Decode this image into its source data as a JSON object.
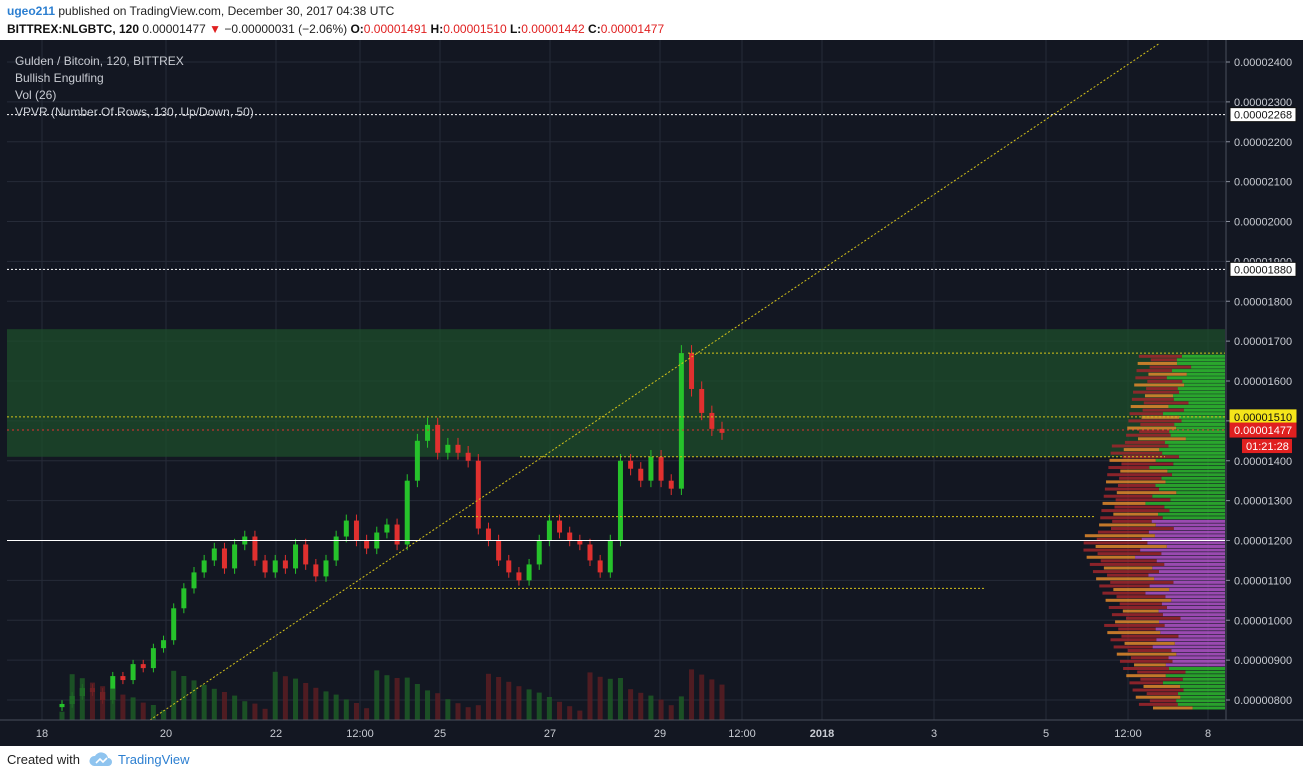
{
  "header": {
    "user": "ugeo211",
    "published_text": "published on TradingView.com, December 30, 2017 04:38 UTC",
    "symbol_line": "BITTREX:NLGBTC, 120",
    "last_price": "0.00001477",
    "change": "−0.00000031 (−2.06%)",
    "o_label": "O:",
    "o_value": "0.00001491",
    "h_label": "H:",
    "h_value": "0.00001510",
    "l_label": "L:",
    "l_value": "0.00001442",
    "c_label": "C:",
    "c_value": "0.00001477"
  },
  "legend": {
    "title": "Gulden / Bitcoin, 120, BITTREX",
    "study1": "Bullish Engulfing",
    "study2": "Vol (26)",
    "study3": "VPVR (Number Of Rows, 130, Up/Down, 50)"
  },
  "footer": {
    "created_with": "Created with",
    "brand": "TradingView"
  },
  "colors": {
    "background": "#131722",
    "up": "#26c22b",
    "down": "#e0302f",
    "zone": "#1e4d2b",
    "trendline": "#d4c21a",
    "price_badge": "#e02020",
    "level_badge": "#f5e61a"
  },
  "chart_data": {
    "type": "candlestick",
    "title": "Gulden / Bitcoin, 120, BITTREX",
    "x_ticks": [
      "18",
      "20",
      "22",
      "12:00",
      "25",
      "27",
      "29",
      "12:00",
      "2018",
      "3",
      "5",
      "12:00",
      "8"
    ],
    "y_ticks": [
      "0.00002400",
      "0.00002300",
      "0.00002200",
      "0.00002100",
      "0.00002000",
      "0.00001900",
      "0.00001800",
      "0.00001700",
      "0.00001600",
      "0.00001500",
      "0.00001400",
      "0.00001300",
      "0.00001200",
      "0.00001100",
      "0.00001000",
      "0.00000900",
      "0.00000800"
    ],
    "ylim": [
      7.6e-06,
      2.46e-05
    ],
    "horizontal_levels": [
      {
        "label": "0.00002268",
        "value": 2.268e-05,
        "style": "dotted-white"
      },
      {
        "label": "0.00001880",
        "value": 1.88e-05,
        "style": "dotted-white"
      },
      {
        "label": "0.00001510",
        "value": 1.51e-05,
        "style": "yellow-badge"
      },
      {
        "label": "0.00001477",
        "value": 1.477e-05,
        "style": "red-badge"
      }
    ],
    "countdown": "01:21:28",
    "zone": [
      1.41e-05,
      1.73e-05
    ],
    "close_series": [
      7.9e-06,
      8.1e-06,
      8.3e-06,
      8.2e-06,
      8e-06,
      8.6e-06,
      8.5e-06,
      8.9e-06,
      8.8e-06,
      9.3e-06,
      9.5e-06,
      1.03e-05,
      1.08e-05,
      1.12e-05,
      1.15e-05,
      1.18e-05,
      1.13e-05,
      1.19e-05,
      1.21e-05,
      1.15e-05,
      1.12e-05,
      1.15e-05,
      1.13e-05,
      1.19e-05,
      1.14e-05,
      1.11e-05,
      1.15e-05,
      1.21e-05,
      1.25e-05,
      1.2e-05,
      1.18e-05,
      1.22e-05,
      1.24e-05,
      1.19e-05,
      1.35e-05,
      1.45e-05,
      1.49e-05,
      1.42e-05,
      1.44e-05,
      1.42e-05,
      1.4e-05,
      1.23e-05,
      1.2e-05,
      1.15e-05,
      1.12e-05,
      1.1e-05,
      1.14e-05,
      1.2e-05,
      1.25e-05,
      1.22e-05,
      1.2e-05,
      1.19e-05,
      1.15e-05,
      1.12e-05,
      1.2e-05,
      1.4e-05,
      1.38e-05,
      1.35e-05,
      1.41e-05,
      1.35e-05,
      1.33e-05,
      1.67e-05,
      1.58e-05,
      1.52e-05,
      1.48e-05,
      1.47e-05
    ],
    "volume_profile_note": "VPVR up/down histogram on right side"
  }
}
